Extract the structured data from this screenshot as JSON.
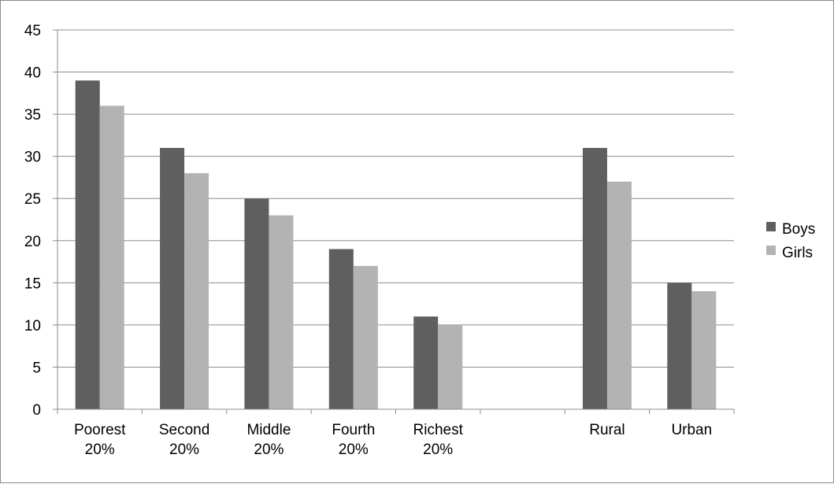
{
  "chart_data": {
    "type": "bar",
    "title": "",
    "xlabel": "",
    "ylabel": "",
    "categories": [
      [
        "Poorest",
        "20%"
      ],
      [
        "Second",
        "20%"
      ],
      [
        "Middle",
        "20%"
      ],
      [
        "Fourth",
        "20%"
      ],
      [
        "Richest",
        "20%"
      ],
      [],
      [
        "Rural"
      ],
      [
        "Urban"
      ]
    ],
    "series": [
      {
        "name": "Boys",
        "color": "#5f5f5f",
        "values": [
          39,
          31,
          25,
          19,
          11,
          null,
          31,
          15
        ]
      },
      {
        "name": "Girls",
        "color": "#b3b3b3",
        "values": [
          36,
          28,
          23,
          17,
          10,
          null,
          27,
          14
        ]
      }
    ],
    "ylim": [
      0,
      45
    ],
    "yticks": [
      0,
      5,
      10,
      15,
      20,
      25,
      30,
      35,
      40,
      45
    ],
    "grid": true,
    "legend_position": "right"
  }
}
